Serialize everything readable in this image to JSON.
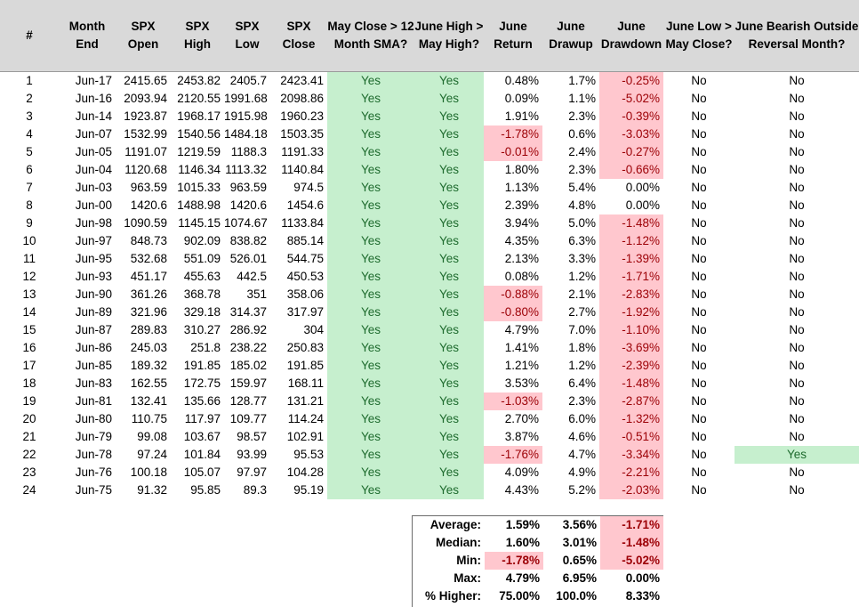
{
  "headers": {
    "num": "#",
    "month_end": "Month\nEnd",
    "spx_open": "SPX\nOpen",
    "spx_high": "SPX\nHigh",
    "spx_low": "SPX\nLow",
    "spx_close": "SPX\nClose",
    "may_close_sma": "May Close > 12\nMonth SMA?",
    "june_high_may_high": "June High >\nMay High?",
    "june_return": "June\nReturn",
    "june_drawup": "June\nDrawup",
    "june_drawdown": "June\nDrawdown",
    "june_low_may_close": "June Low >\nMay Close?",
    "june_bearish": "June Bearish Outside\nReversal Month?"
  },
  "rows": [
    {
      "n": "1",
      "month": "Jun-17",
      "open": "2415.65",
      "high": "2453.82",
      "low": "2405.7",
      "close": "2423.41",
      "sma": "Yes",
      "mayhigh": "Yes",
      "ret": "0.48%",
      "ret_neg": false,
      "drawup": "1.7%",
      "drawdown": "-0.25%",
      "dd_neg": true,
      "lowclose": "No",
      "bearish": "No",
      "bearish_yes": false
    },
    {
      "n": "2",
      "month": "Jun-16",
      "open": "2093.94",
      "high": "2120.55",
      "low": "1991.68",
      "close": "2098.86",
      "sma": "Yes",
      "mayhigh": "Yes",
      "ret": "0.09%",
      "ret_neg": false,
      "drawup": "1.1%",
      "drawdown": "-5.02%",
      "dd_neg": true,
      "lowclose": "No",
      "bearish": "No",
      "bearish_yes": false
    },
    {
      "n": "3",
      "month": "Jun-14",
      "open": "1923.87",
      "high": "1968.17",
      "low": "1915.98",
      "close": "1960.23",
      "sma": "Yes",
      "mayhigh": "Yes",
      "ret": "1.91%",
      "ret_neg": false,
      "drawup": "2.3%",
      "drawdown": "-0.39%",
      "dd_neg": true,
      "lowclose": "No",
      "bearish": "No",
      "bearish_yes": false
    },
    {
      "n": "4",
      "month": "Jun-07",
      "open": "1532.99",
      "high": "1540.56",
      "low": "1484.18",
      "close": "1503.35",
      "sma": "Yes",
      "mayhigh": "Yes",
      "ret": "-1.78%",
      "ret_neg": true,
      "drawup": "0.6%",
      "drawdown": "-3.03%",
      "dd_neg": true,
      "lowclose": "No",
      "bearish": "No",
      "bearish_yes": false
    },
    {
      "n": "5",
      "month": "Jun-05",
      "open": "1191.07",
      "high": "1219.59",
      "low": "1188.3",
      "close": "1191.33",
      "sma": "Yes",
      "mayhigh": "Yes",
      "ret": "-0.01%",
      "ret_neg": true,
      "drawup": "2.4%",
      "drawdown": "-0.27%",
      "dd_neg": true,
      "lowclose": "No",
      "bearish": "No",
      "bearish_yes": false
    },
    {
      "n": "6",
      "month": "Jun-04",
      "open": "1120.68",
      "high": "1146.34",
      "low": "1113.32",
      "close": "1140.84",
      "sma": "Yes",
      "mayhigh": "Yes",
      "ret": "1.80%",
      "ret_neg": false,
      "drawup": "2.3%",
      "drawdown": "-0.66%",
      "dd_neg": true,
      "lowclose": "No",
      "bearish": "No",
      "bearish_yes": false
    },
    {
      "n": "7",
      "month": "Jun-03",
      "open": "963.59",
      "high": "1015.33",
      "low": "963.59",
      "close": "974.5",
      "sma": "Yes",
      "mayhigh": "Yes",
      "ret": "1.13%",
      "ret_neg": false,
      "drawup": "5.4%",
      "drawdown": "0.00%",
      "dd_neg": false,
      "lowclose": "No",
      "bearish": "No",
      "bearish_yes": false
    },
    {
      "n": "8",
      "month": "Jun-00",
      "open": "1420.6",
      "high": "1488.98",
      "low": "1420.6",
      "close": "1454.6",
      "sma": "Yes",
      "mayhigh": "Yes",
      "ret": "2.39%",
      "ret_neg": false,
      "drawup": "4.8%",
      "drawdown": "0.00%",
      "dd_neg": false,
      "lowclose": "No",
      "bearish": "No",
      "bearish_yes": false
    },
    {
      "n": "9",
      "month": "Jun-98",
      "open": "1090.59",
      "high": "1145.15",
      "low": "1074.67",
      "close": "1133.84",
      "sma": "Yes",
      "mayhigh": "Yes",
      "ret": "3.94%",
      "ret_neg": false,
      "drawup": "5.0%",
      "drawdown": "-1.48%",
      "dd_neg": true,
      "lowclose": "No",
      "bearish": "No",
      "bearish_yes": false
    },
    {
      "n": "10",
      "month": "Jun-97",
      "open": "848.73",
      "high": "902.09",
      "low": "838.82",
      "close": "885.14",
      "sma": "Yes",
      "mayhigh": "Yes",
      "ret": "4.35%",
      "ret_neg": false,
      "drawup": "6.3%",
      "drawdown": "-1.12%",
      "dd_neg": true,
      "lowclose": "No",
      "bearish": "No",
      "bearish_yes": false
    },
    {
      "n": "11",
      "month": "Jun-95",
      "open": "532.68",
      "high": "551.09",
      "low": "526.01",
      "close": "544.75",
      "sma": "Yes",
      "mayhigh": "Yes",
      "ret": "2.13%",
      "ret_neg": false,
      "drawup": "3.3%",
      "drawdown": "-1.39%",
      "dd_neg": true,
      "lowclose": "No",
      "bearish": "No",
      "bearish_yes": false
    },
    {
      "n": "12",
      "month": "Jun-93",
      "open": "451.17",
      "high": "455.63",
      "low": "442.5",
      "close": "450.53",
      "sma": "Yes",
      "mayhigh": "Yes",
      "ret": "0.08%",
      "ret_neg": false,
      "drawup": "1.2%",
      "drawdown": "-1.71%",
      "dd_neg": true,
      "lowclose": "No",
      "bearish": "No",
      "bearish_yes": false
    },
    {
      "n": "13",
      "month": "Jun-90",
      "open": "361.26",
      "high": "368.78",
      "low": "351",
      "close": "358.06",
      "sma": "Yes",
      "mayhigh": "Yes",
      "ret": "-0.88%",
      "ret_neg": true,
      "drawup": "2.1%",
      "drawdown": "-2.83%",
      "dd_neg": true,
      "lowclose": "No",
      "bearish": "No",
      "bearish_yes": false
    },
    {
      "n": "14",
      "month": "Jun-89",
      "open": "321.96",
      "high": "329.18",
      "low": "314.37",
      "close": "317.97",
      "sma": "Yes",
      "mayhigh": "Yes",
      "ret": "-0.80%",
      "ret_neg": true,
      "drawup": "2.7%",
      "drawdown": "-1.92%",
      "dd_neg": true,
      "lowclose": "No",
      "bearish": "No",
      "bearish_yes": false
    },
    {
      "n": "15",
      "month": "Jun-87",
      "open": "289.83",
      "high": "310.27",
      "low": "286.92",
      "close": "304",
      "sma": "Yes",
      "mayhigh": "Yes",
      "ret": "4.79%",
      "ret_neg": false,
      "drawup": "7.0%",
      "drawdown": "-1.10%",
      "dd_neg": true,
      "lowclose": "No",
      "bearish": "No",
      "bearish_yes": false
    },
    {
      "n": "16",
      "month": "Jun-86",
      "open": "245.03",
      "high": "251.8",
      "low": "238.22",
      "close": "250.83",
      "sma": "Yes",
      "mayhigh": "Yes",
      "ret": "1.41%",
      "ret_neg": false,
      "drawup": "1.8%",
      "drawdown": "-3.69%",
      "dd_neg": true,
      "lowclose": "No",
      "bearish": "No",
      "bearish_yes": false
    },
    {
      "n": "17",
      "month": "Jun-85",
      "open": "189.32",
      "high": "191.85",
      "low": "185.02",
      "close": "191.85",
      "sma": "Yes",
      "mayhigh": "Yes",
      "ret": "1.21%",
      "ret_neg": false,
      "drawup": "1.2%",
      "drawdown": "-2.39%",
      "dd_neg": true,
      "lowclose": "No",
      "bearish": "No",
      "bearish_yes": false
    },
    {
      "n": "18",
      "month": "Jun-83",
      "open": "162.55",
      "high": "172.75",
      "low": "159.97",
      "close": "168.11",
      "sma": "Yes",
      "mayhigh": "Yes",
      "ret": "3.53%",
      "ret_neg": false,
      "drawup": "6.4%",
      "drawdown": "-1.48%",
      "dd_neg": true,
      "lowclose": "No",
      "bearish": "No",
      "bearish_yes": false
    },
    {
      "n": "19",
      "month": "Jun-81",
      "open": "132.41",
      "high": "135.66",
      "low": "128.77",
      "close": "131.21",
      "sma": "Yes",
      "mayhigh": "Yes",
      "ret": "-1.03%",
      "ret_neg": true,
      "drawup": "2.3%",
      "drawdown": "-2.87%",
      "dd_neg": true,
      "lowclose": "No",
      "bearish": "No",
      "bearish_yes": false
    },
    {
      "n": "20",
      "month": "Jun-80",
      "open": "110.75",
      "high": "117.97",
      "low": "109.77",
      "close": "114.24",
      "sma": "Yes",
      "mayhigh": "Yes",
      "ret": "2.70%",
      "ret_neg": false,
      "drawup": "6.0%",
      "drawdown": "-1.32%",
      "dd_neg": true,
      "lowclose": "No",
      "bearish": "No",
      "bearish_yes": false
    },
    {
      "n": "21",
      "month": "Jun-79",
      "open": "99.08",
      "high": "103.67",
      "low": "98.57",
      "close": "102.91",
      "sma": "Yes",
      "mayhigh": "Yes",
      "ret": "3.87%",
      "ret_neg": false,
      "drawup": "4.6%",
      "drawdown": "-0.51%",
      "dd_neg": true,
      "lowclose": "No",
      "bearish": "No",
      "bearish_yes": false
    },
    {
      "n": "22",
      "month": "Jun-78",
      "open": "97.24",
      "high": "101.84",
      "low": "93.99",
      "close": "95.53",
      "sma": "Yes",
      "mayhigh": "Yes",
      "ret": "-1.76%",
      "ret_neg": true,
      "drawup": "4.7%",
      "drawdown": "-3.34%",
      "dd_neg": true,
      "lowclose": "No",
      "bearish": "Yes",
      "bearish_yes": true
    },
    {
      "n": "23",
      "month": "Jun-76",
      "open": "100.18",
      "high": "105.07",
      "low": "97.97",
      "close": "104.28",
      "sma": "Yes",
      "mayhigh": "Yes",
      "ret": "4.09%",
      "ret_neg": false,
      "drawup": "4.9%",
      "drawdown": "-2.21%",
      "dd_neg": true,
      "lowclose": "No",
      "bearish": "No",
      "bearish_yes": false
    },
    {
      "n": "24",
      "month": "Jun-75",
      "open": "91.32",
      "high": "95.85",
      "low": "89.3",
      "close": "95.19",
      "sma": "Yes",
      "mayhigh": "Yes",
      "ret": "4.43%",
      "ret_neg": false,
      "drawup": "5.2%",
      "drawdown": "-2.03%",
      "dd_neg": true,
      "lowclose": "No",
      "bearish": "No",
      "bearish_yes": false
    }
  ],
  "summary": [
    {
      "label": "Average:",
      "ret": "1.59%",
      "ret_neg": false,
      "drawup": "3.56%",
      "drawdown": "-1.71%",
      "dd_neg": true
    },
    {
      "label": "Median:",
      "ret": "1.60%",
      "ret_neg": false,
      "drawup": "3.01%",
      "drawdown": "-1.48%",
      "dd_neg": true
    },
    {
      "label": "Min:",
      "ret": "-1.78%",
      "ret_neg": true,
      "drawup": "0.65%",
      "drawdown": "-5.02%",
      "dd_neg": true
    },
    {
      "label": "Max:",
      "ret": "4.79%",
      "ret_neg": false,
      "drawup": "6.95%",
      "drawdown": "0.00%",
      "dd_neg": false
    },
    {
      "label": "% Higher:",
      "ret": "75.00%",
      "ret_neg": false,
      "drawup": "100.0%",
      "drawdown": "8.33%",
      "dd_neg": false
    }
  ],
  "colors": {
    "header_bg": "#d9d9d9",
    "good_bg": "#c6efce",
    "good_text": "#1e6b2e",
    "bad_bg": "#ffc7ce",
    "bad_text": "#9c0006"
  }
}
